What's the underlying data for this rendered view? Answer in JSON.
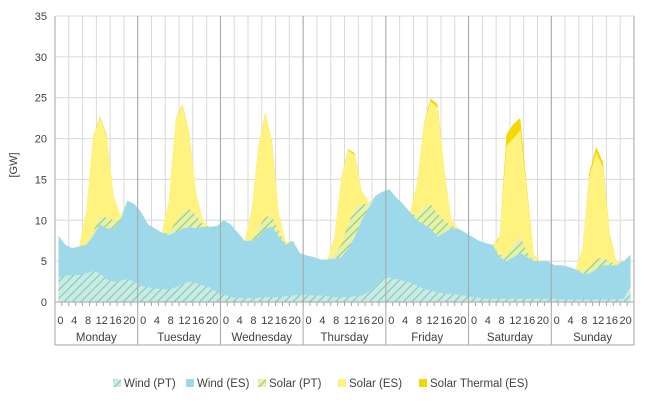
{
  "chart_data": {
    "type": "area",
    "title": "",
    "xlabel": "",
    "ylabel": "[GW]",
    "ylim": [
      0,
      35
    ],
    "yticks": [
      0,
      5,
      10,
      15,
      20,
      25,
      30,
      35
    ],
    "hour_ticks": [
      "0",
      "4",
      "8",
      "12",
      "16",
      "20"
    ],
    "days": [
      "Monday",
      "Tuesday",
      "Wednesday",
      "Thursday",
      "Friday",
      "Saturday",
      "Sunday"
    ],
    "hours": [
      0,
      2,
      4,
      6,
      8,
      10,
      12,
      14,
      16,
      18,
      20,
      22
    ],
    "legend_position": "bottom",
    "grid": true,
    "stacking": "stacked, with Wind (PT) overlaid on the lower part of Wind (ES)",
    "colors": {
      "wind_pt": "#a9dccf",
      "wind_es": "#9ed9ea",
      "solar_pt": "#b9e07a",
      "solar_es": "#fff27f",
      "solar_thermal_es": "#f5d800",
      "grid": "#d9d9d9",
      "day_separator": "#a6a6a6"
    },
    "series": [
      {
        "name": "Wind (PT)",
        "values": [
          3.0,
          3.2,
          3.3,
          3.3,
          3.5,
          3.8,
          3.5,
          2.8,
          2.5,
          2.6,
          2.8,
          2.5,
          2.0,
          1.8,
          1.6,
          1.6,
          1.5,
          1.8,
          2.2,
          2.5,
          2.3,
          2.0,
          1.8,
          1.2,
          0.9,
          0.6,
          0.5,
          0.5,
          0.5,
          0.5,
          0.6,
          0.6,
          0.6,
          0.7,
          0.8,
          0.9,
          0.9,
          0.8,
          0.8,
          0.7,
          0.6,
          0.6,
          0.6,
          0.7,
          0.8,
          1.2,
          2.0,
          2.8,
          3.0,
          2.8,
          2.6,
          2.4,
          2.0,
          1.6,
          1.4,
          1.2,
          1.0,
          1.0,
          0.9,
          0.8,
          0.6,
          0.5,
          0.4,
          0.4,
          0.4,
          0.4,
          0.4,
          0.4,
          0.4,
          0.4,
          0.4,
          0.4,
          0.4,
          0.3,
          0.3,
          0.3,
          0.3,
          0.3,
          0.3,
          0.3,
          0.3,
          0.3,
          0.4,
          2.0
        ]
      },
      {
        "name": "Wind (ES)",
        "values": [
          8.1,
          7.0,
          6.6,
          6.8,
          7.0,
          8.0,
          9.5,
          9.0,
          9.0,
          10.0,
          12.4,
          12.0,
          11.0,
          9.5,
          9.0,
          8.5,
          8.2,
          8.5,
          9.0,
          9.2,
          9.0,
          9.2,
          9.2,
          9.3,
          10.0,
          9.5,
          8.5,
          7.5,
          7.5,
          8.0,
          9.0,
          9.2,
          8.0,
          7.0,
          7.5,
          6.0,
          5.7,
          5.5,
          5.2,
          5.2,
          5.3,
          5.5,
          6.5,
          8.0,
          10.0,
          11.5,
          13.0,
          13.5,
          13.8,
          12.8,
          12.0,
          11.0,
          10.0,
          9.5,
          9.0,
          8.0,
          8.5,
          9.0,
          9.0,
          8.5,
          8.0,
          7.5,
          7.2,
          7.0,
          5.5,
          5.0,
          5.5,
          6.0,
          5.5,
          5.0,
          5.0,
          5.0,
          4.5,
          4.5,
          4.3,
          4.0,
          3.5,
          3.5,
          4.0,
          4.5,
          4.5,
          4.5,
          5.0,
          5.8
        ]
      },
      {
        "name": "Solar (PT)",
        "values": [
          0,
          0,
          0,
          0,
          0,
          0.5,
          1.0,
          1.3,
          1.0,
          0.2,
          0,
          0,
          0,
          0,
          0,
          0,
          0.2,
          1.3,
          2.0,
          2.2,
          1.6,
          0.2,
          0,
          0,
          0,
          0,
          0,
          0,
          0.2,
          1.0,
          1.5,
          1.2,
          0.6,
          0.1,
          0,
          0,
          0,
          0,
          0,
          0,
          0.5,
          1.5,
          3.0,
          3.5,
          2.0,
          0.5,
          0,
          0,
          0,
          0,
          0,
          0,
          0.5,
          2.0,
          3.0,
          2.8,
          1.5,
          0.3,
          0,
          0,
          0,
          0,
          0,
          0,
          0.3,
          0.6,
          1.5,
          2.0,
          0.6,
          0.1,
          0,
          0,
          0,
          0,
          0,
          0,
          0.3,
          0.7,
          1.2,
          1.0,
          0.4,
          0.1,
          0,
          0
        ]
      },
      {
        "name": "Solar (ES)",
        "values": [
          0,
          0,
          0,
          0,
          4.0,
          11.5,
          12.0,
          10.0,
          3.0,
          0.3,
          0,
          0,
          0,
          0,
          0,
          0,
          4.0,
          12.5,
          13.0,
          9.0,
          2.5,
          0.5,
          0,
          0,
          0,
          0,
          0,
          0,
          3.5,
          10.0,
          12.5,
          9.0,
          2.0,
          0.3,
          0,
          0,
          0,
          0,
          0,
          0,
          2.0,
          8.0,
          9.0,
          6.5,
          1.5,
          0.2,
          0,
          0,
          0,
          0,
          0,
          0,
          4.0,
          10.0,
          12.5,
          13.0,
          6.0,
          0.8,
          0,
          0,
          0,
          0,
          0,
          0,
          2.0,
          13.5,
          13.0,
          13.0,
          7.0,
          0.5,
          0,
          0,
          0,
          0,
          0,
          0,
          2.5,
          11.0,
          13.0,
          11.0,
          3.0,
          0.3,
          0,
          0
        ]
      },
      {
        "name": "Solar Thermal (ES)",
        "values": [
          0,
          0,
          0,
          0,
          0,
          0.1,
          0.2,
          0.2,
          0.1,
          0,
          0,
          0,
          0,
          0,
          0,
          0,
          0,
          0.1,
          0.2,
          0.2,
          0.1,
          0,
          0,
          0,
          0,
          0,
          0,
          0,
          0,
          0.1,
          0.2,
          0.2,
          0.1,
          0,
          0,
          0,
          0,
          0,
          0,
          0,
          0,
          0.1,
          0.2,
          0.2,
          0.1,
          0,
          0,
          0,
          0,
          0,
          0,
          0,
          0,
          0.2,
          0.4,
          0.4,
          0.2,
          0,
          0,
          0,
          0,
          0,
          0,
          0,
          0.2,
          1.4,
          1.8,
          1.5,
          0.6,
          0.1,
          0,
          0,
          0,
          0,
          0,
          0,
          0.1,
          0.5,
          0.8,
          0.6,
          0.3,
          0,
          0,
          0
        ]
      }
    ]
  }
}
